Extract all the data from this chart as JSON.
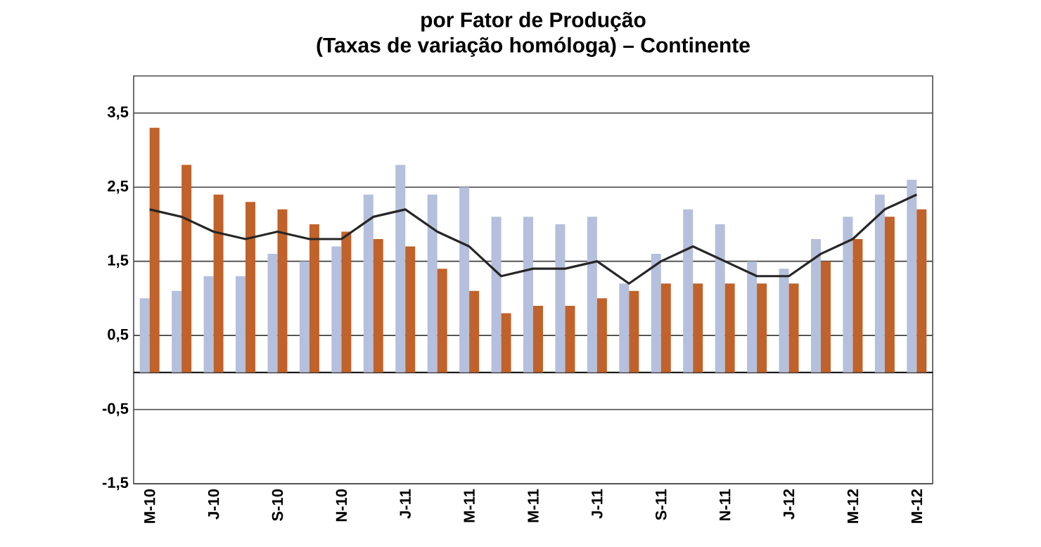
{
  "chart_data": {
    "type": "bar",
    "title": "por Fator de Produção",
    "subtitle": "(Taxas de variação homóloga) – Continente",
    "categories": [
      "M-10",
      null,
      "J-10",
      null,
      "S-10",
      null,
      "N-10",
      null,
      "J-11",
      null,
      "M-11",
      null,
      "M-11",
      null,
      "J-11",
      null,
      "S-11",
      null,
      "N-11",
      null,
      "J-12",
      null,
      "M-12",
      null,
      "M-12"
    ],
    "series": [
      {
        "color": "#b4c0dc",
        "values": [
          1.0,
          1.1,
          1.3,
          1.3,
          1.6,
          1.5,
          1.7,
          2.4,
          2.8,
          2.4,
          2.5,
          2.1,
          2.1,
          2.0,
          2.1,
          1.2,
          1.6,
          2.2,
          2.0,
          1.5,
          1.4,
          1.8,
          2.1,
          2.4,
          2.6
        ]
      },
      {
        "color": "#c0622a",
        "values": [
          3.3,
          2.8,
          2.4,
          2.3,
          2.2,
          2.0,
          1.9,
          1.8,
          1.7,
          1.4,
          1.1,
          0.8,
          0.9,
          0.9,
          1.0,
          1.1,
          1.2,
          1.2,
          1.2,
          1.2,
          1.2,
          1.5,
          1.8,
          2.1,
          2.2
        ]
      },
      {
        "type": "line",
        "color": "#262626",
        "values": [
          2.2,
          2.1,
          1.9,
          1.8,
          1.9,
          1.8,
          1.8,
          2.1,
          2.2,
          1.9,
          1.7,
          1.3,
          1.4,
          1.4,
          1.5,
          1.2,
          1.5,
          1.7,
          1.5,
          1.3,
          1.3,
          1.6,
          1.8,
          2.2,
          2.4
        ]
      }
    ],
    "ylim": [
      -1.5,
      4
    ],
    "yticks": [
      {
        "value": -1.5,
        "label": "-1,5"
      },
      {
        "value": -0.5,
        "label": "-0,5"
      },
      {
        "value": 0.5,
        "label": "0,5"
      },
      {
        "value": 1.5,
        "label": "1,5"
      },
      {
        "value": 2.5,
        "label": "2,5"
      },
      {
        "value": 3.5,
        "label": "3,5"
      }
    ],
    "grid": "y",
    "marker": "none",
    "line_style": "solid"
  }
}
